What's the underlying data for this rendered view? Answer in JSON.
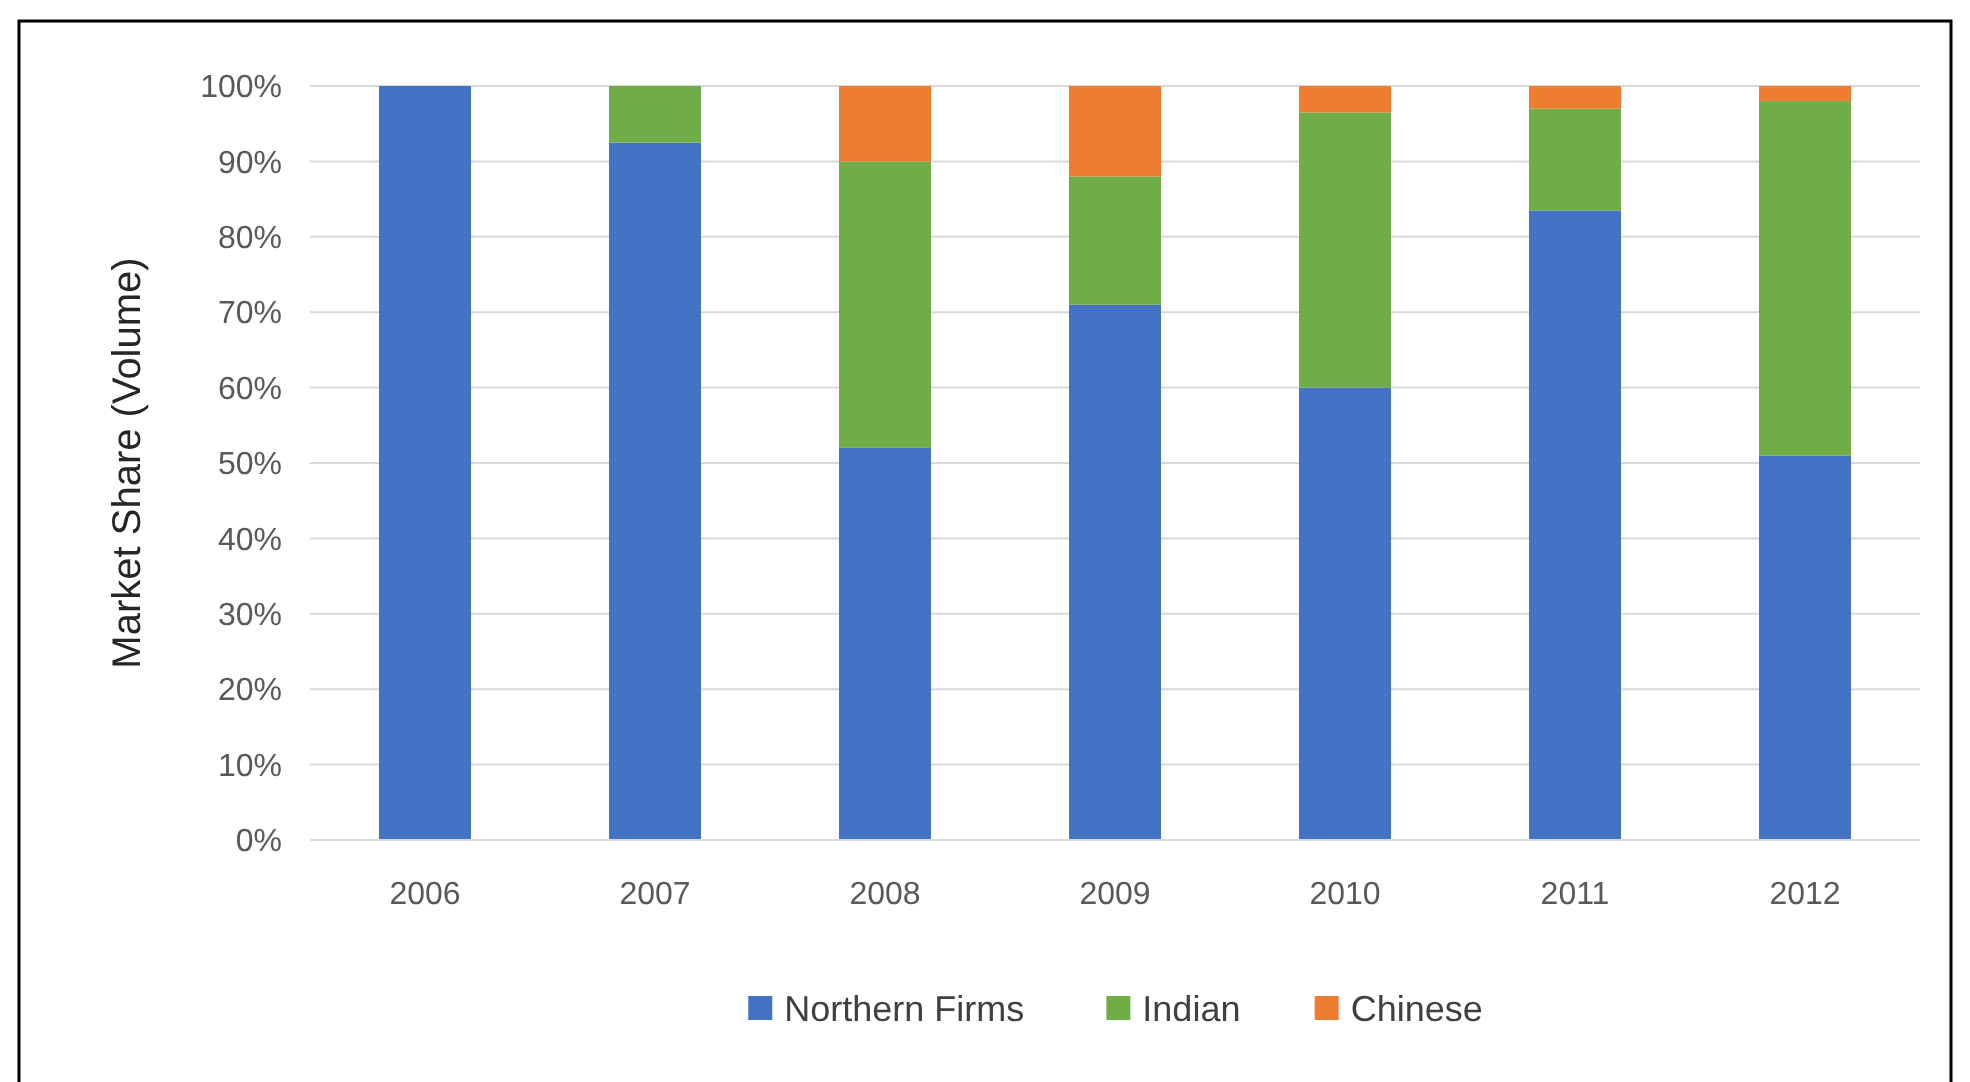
{
  "chart_data": {
    "type": "bar",
    "stacked": true,
    "ylabel": "Market Share (Volume)",
    "categories": [
      "2006",
      "2007",
      "2008",
      "2009",
      "2010",
      "2011",
      "2012"
    ],
    "series": [
      {
        "name": "Northern Firms",
        "color": "#4472c4",
        "values": [
          100,
          92.5,
          52,
          71,
          60,
          83.5,
          51
        ]
      },
      {
        "name": "Indian",
        "color": "#70ad47",
        "values": [
          0,
          7.5,
          38,
          17,
          36.5,
          13.5,
          47
        ]
      },
      {
        "name": "Chinese",
        "color": "#ed7d31",
        "values": [
          0,
          0,
          10,
          12,
          3.5,
          3,
          2
        ]
      }
    ],
    "ylim": [
      0,
      100
    ],
    "yticks": [
      {
        "value": 0,
        "label": "0%"
      },
      {
        "value": 10,
        "label": "10%"
      },
      {
        "value": 20,
        "label": "20%"
      },
      {
        "value": 30,
        "label": "30%"
      },
      {
        "value": 40,
        "label": "40%"
      },
      {
        "value": 50,
        "label": "50%"
      },
      {
        "value": 60,
        "label": "60%"
      },
      {
        "value": 70,
        "label": "70%"
      },
      {
        "value": 80,
        "label": "80%"
      },
      {
        "value": 90,
        "label": "90%"
      },
      {
        "value": 100,
        "label": "100%"
      }
    ],
    "grid": "y",
    "legend": "bottom"
  }
}
